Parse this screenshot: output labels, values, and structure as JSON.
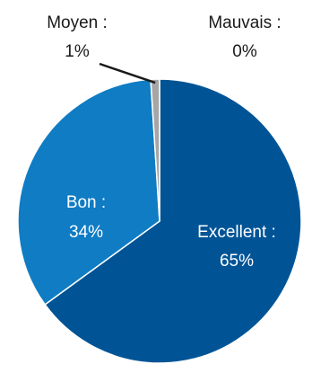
{
  "chart_data": {
    "type": "pie",
    "title": "",
    "slices": [
      {
        "name": "Excellent",
        "value": 65,
        "label": "Excellent :",
        "value_label": "65%",
        "color": "#005496",
        "label_color": "#ffffff"
      },
      {
        "name": "Bon",
        "value": 34,
        "label": "Bon :",
        "value_label": "34%",
        "color": "#0f7cc4",
        "label_color": "#ffffff"
      },
      {
        "name": "Moyen",
        "value": 1,
        "label": "Moyen :",
        "value_label": "1%",
        "color": "#a6a6a6",
        "label_color": "#1a1a1a"
      },
      {
        "name": "Mauvais",
        "value": 0,
        "label": "Mauvais :",
        "value_label": "0%",
        "color": "#7f7f7f",
        "label_color": "#1a1a1a"
      }
    ],
    "legend": "none"
  }
}
